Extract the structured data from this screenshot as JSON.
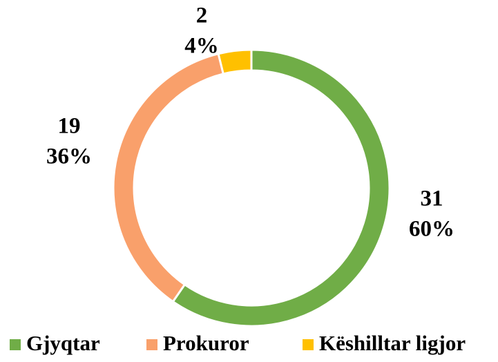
{
  "chart_data": {
    "type": "donut",
    "categories": [
      "Gjyqtar",
      "Prokuror",
      "Këshilltar ligjor"
    ],
    "values": [
      31,
      19,
      2
    ],
    "percent_labels": [
      "60%",
      "36%",
      "4%"
    ],
    "colors": [
      "#70ad47",
      "#f9a06b",
      "#ffc000"
    ],
    "legend": "bottom"
  }
}
